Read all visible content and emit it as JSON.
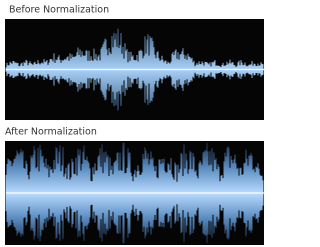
{
  "panels": [
    {
      "label": "Before Normalization"
    },
    {
      "label": "After Normalization"
    }
  ]
}
